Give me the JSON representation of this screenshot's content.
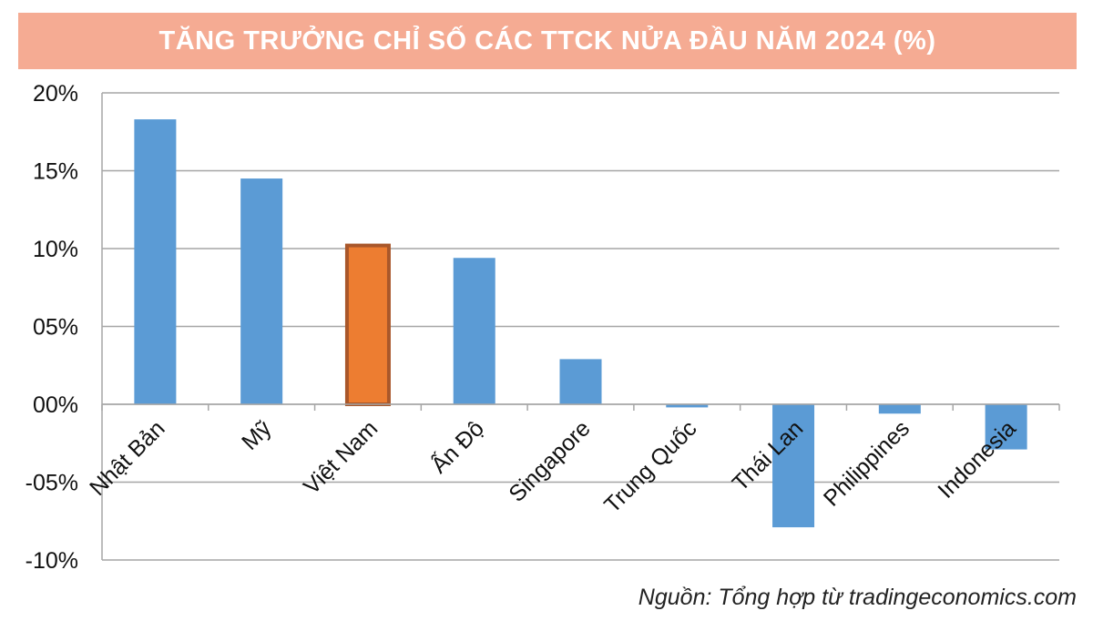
{
  "title": "TĂNG TRƯỞNG CHỈ SỐ CÁC TTCK NỬA ĐẦU NĂM 2024 (%)",
  "source": "Nguồn: Tổng hợp từ tradingeconomics.com",
  "colors": {
    "title_background": "#f5ab93",
    "bar": "#5b9bd5",
    "highlight_bar": "#ed7d31",
    "highlight_border": "#a9572a",
    "grid": "#a6a6a6"
  },
  "chart_data": {
    "type": "bar",
    "title": "TĂNG TRƯỞNG CHỈ SỐ CÁC TTCK NỬA ĐẦU NĂM 2024 (%)",
    "xlabel": "",
    "ylabel": "",
    "categories": [
      "Nhật Bản",
      "Mỹ",
      "Việt Nam",
      "Ấn Độ",
      "Singapore",
      "Trung Quốc",
      "Thái Lan",
      "Philippines",
      "Indonesia"
    ],
    "values": [
      18.3,
      14.5,
      10.2,
      9.4,
      2.9,
      -0.2,
      -7.9,
      -0.6,
      -2.9
    ],
    "highlight": "Việt Nam",
    "ylim": [
      -10,
      20
    ],
    "yticks": [
      20,
      15,
      10,
      5,
      0,
      -5,
      -10
    ],
    "ytick_labels": [
      "20%",
      "15%",
      "10%",
      "05%",
      "00%",
      "-05%",
      "-10%"
    ],
    "grid": true,
    "legend": "none"
  }
}
